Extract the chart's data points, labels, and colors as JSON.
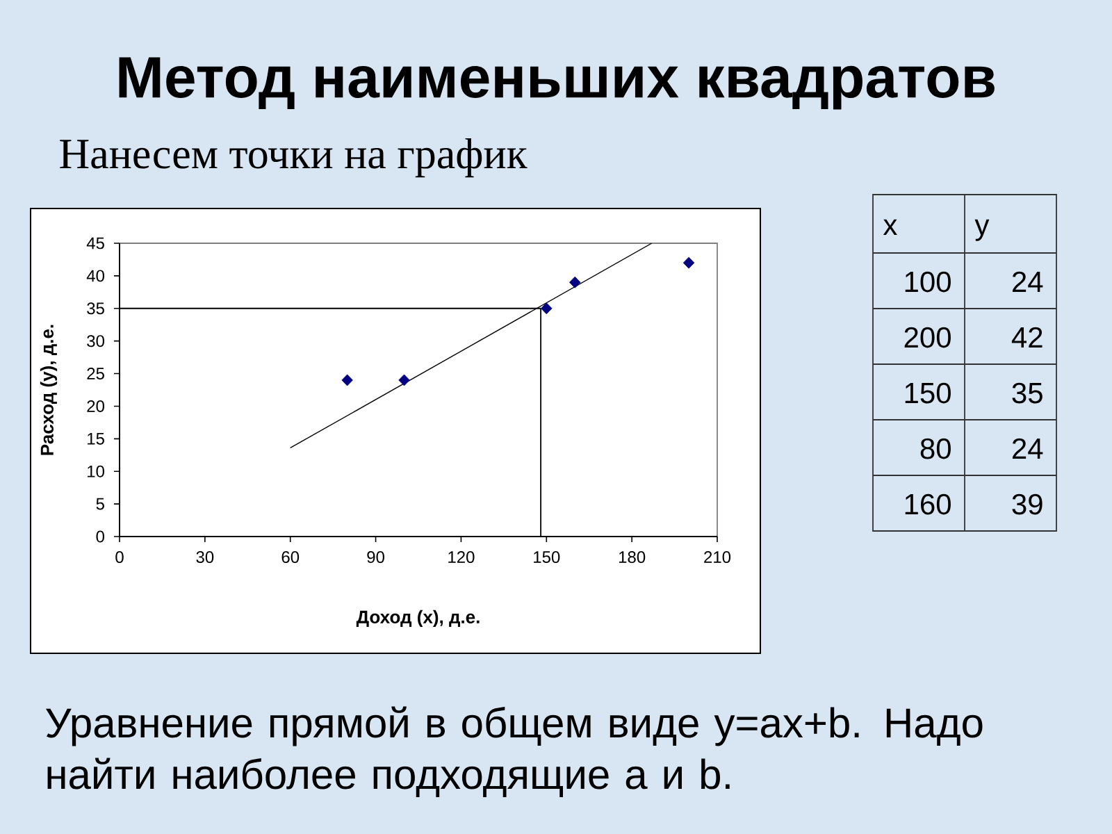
{
  "chart_data": [
    {
      "type": "scatter",
      "title": "Метод наименьших квадратов",
      "subtitle": "Нанесем точки на график",
      "xlabel": "Доход (x), д.е.",
      "ylabel": "Расход (y), д.е.",
      "annotations": [
        "Уравнение прямой в общем виде y=ax+b. Надо найти наиболее подходящие a и b."
      ],
      "series": [
        {
          "color": "#000080",
          "marker": "diamond",
          "x": [
            100,
            200,
            150,
            80,
            160
          ],
          "values": [
            24,
            42,
            35,
            24,
            39
          ]
        },
        {
          "type": "line",
          "color": "#000000",
          "x": [
            60,
            187
          ],
          "values": [
            13.6,
            45
          ]
        }
      ],
      "xlim": [
        0,
        210
      ],
      "ylim": [
        0,
        45
      ],
      "xticks": [
        0,
        30,
        60,
        90,
        120,
        150,
        180,
        210
      ],
      "yticks": [
        0,
        5,
        10,
        15,
        20,
        25,
        30,
        35,
        40,
        45
      ],
      "ref_lines": [
        {
          "axis": "y",
          "value": 35,
          "color": "#000000"
        },
        {
          "axis": "x",
          "value": 148,
          "color": "#000000"
        }
      ]
    },
    {
      "type": "other",
      "categories": [
        "x",
        "y"
      ],
      "annotations": [
        "100",
        "24",
        "200",
        "42",
        "150",
        "35",
        "80",
        "24",
        "160",
        "39"
      ]
    }
  ]
}
